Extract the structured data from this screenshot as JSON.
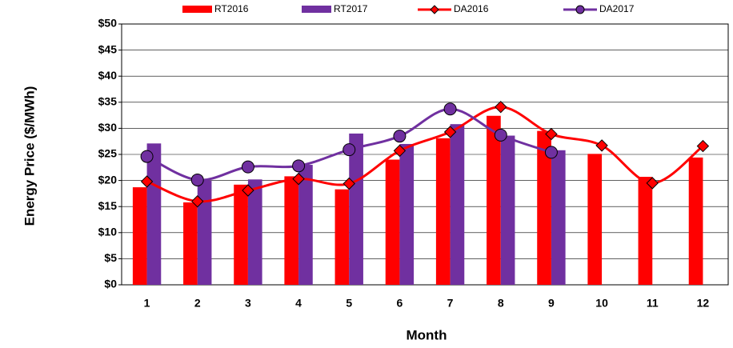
{
  "chart_data": {
    "type": "combo",
    "x_label": "Month",
    "y_label": "Energy Price ($/MWh)",
    "categories": [
      "1",
      "2",
      "3",
      "4",
      "5",
      "6",
      "7",
      "8",
      "9",
      "10",
      "11",
      "12"
    ],
    "series": [
      {
        "name": "RT2016",
        "kind": "bar",
        "color": "#ff0000",
        "values": [
          18.7,
          15.8,
          19.2,
          20.8,
          18.3,
          24.0,
          28.1,
          32.4,
          29.5,
          25.1,
          20.7,
          24.4
        ]
      },
      {
        "name": "RT2017",
        "kind": "bar",
        "color": "#7030a0",
        "values": [
          27.1,
          20.0,
          20.2,
          23.0,
          29.0,
          27.0,
          30.8,
          28.6,
          25.8,
          null,
          null,
          null
        ]
      },
      {
        "name": "DA2016",
        "kind": "line",
        "marker": "diamond",
        "color": "#ff0000",
        "values": [
          19.8,
          16.0,
          18.1,
          20.3,
          19.4,
          25.7,
          29.3,
          34.1,
          28.9,
          26.7,
          19.5,
          26.6
        ]
      },
      {
        "name": "DA2017",
        "kind": "line",
        "marker": "circle",
        "color": "#7030a0",
        "values": [
          24.6,
          20.1,
          22.6,
          22.8,
          25.9,
          28.5,
          33.7,
          28.7,
          25.4,
          null,
          null,
          null
        ]
      }
    ],
    "smooth": true,
    "ylim": [
      0,
      50
    ],
    "yticks": [
      {
        "value": 0,
        "label": "$0"
      },
      {
        "value": 5,
        "label": "$5"
      },
      {
        "value": 10,
        "label": "$10"
      },
      {
        "value": 15,
        "label": "$15"
      },
      {
        "value": 20,
        "label": "$20"
      },
      {
        "value": 25,
        "label": "$25"
      },
      {
        "value": 30,
        "label": "$30"
      },
      {
        "value": 35,
        "label": "$35"
      },
      {
        "value": 40,
        "label": "$40"
      },
      {
        "value": 45,
        "label": "$45"
      },
      {
        "value": 50,
        "label": "$50"
      }
    ],
    "grid": true,
    "legend": "top"
  }
}
